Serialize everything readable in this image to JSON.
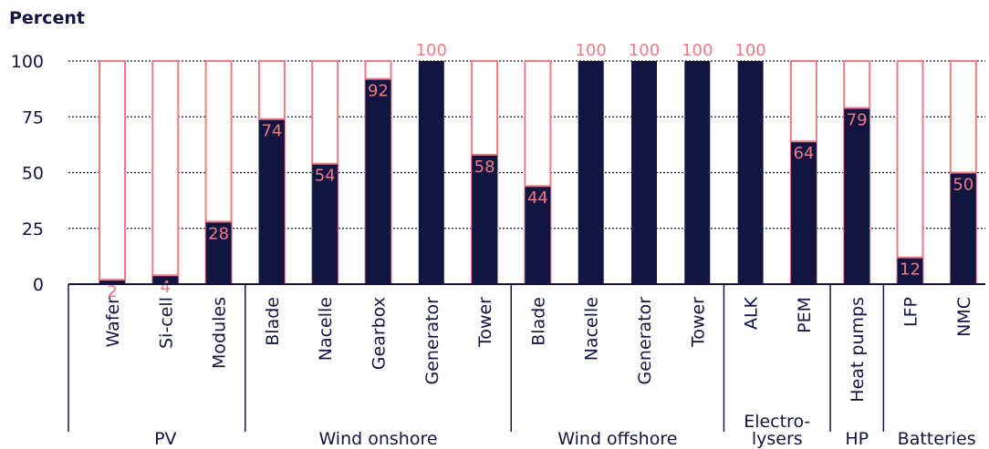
{
  "chart_data": {
    "type": "bar",
    "unit_label": "Percent",
    "ylim": [
      0,
      100
    ],
    "yticks": [
      0,
      25,
      50,
      75,
      100
    ],
    "grid": true,
    "colors": {
      "filled": "#121540",
      "outline": "#ee7a86",
      "label": "#ee7a86",
      "axis": "#121540"
    },
    "categories": [
      "Wafer",
      "Si-cell",
      "Modules",
      "Blade",
      "Nacelle",
      "Gearbox",
      "Generator",
      "Tower",
      "Blade",
      "Nacelle",
      "Generator",
      "Tower",
      "ALK",
      "PEM",
      "Heat pumps",
      "LFP",
      "NMC"
    ],
    "values": [
      2,
      4,
      28,
      74,
      54,
      92,
      100,
      58,
      44,
      100,
      100,
      100,
      100,
      64,
      79,
      12,
      50
    ],
    "groups": [
      {
        "lines": [
          "PV"
        ],
        "count": 3
      },
      {
        "lines": [
          "Wind onshore"
        ],
        "count": 5
      },
      {
        "lines": [
          "Wind offshore"
        ],
        "count": 4
      },
      {
        "lines": [
          "Electro-",
          "lysers"
        ],
        "count": 2
      },
      {
        "lines": [
          "HP"
        ],
        "count": 1
      },
      {
        "lines": [
          "Batteries"
        ],
        "count": 2
      }
    ]
  }
}
